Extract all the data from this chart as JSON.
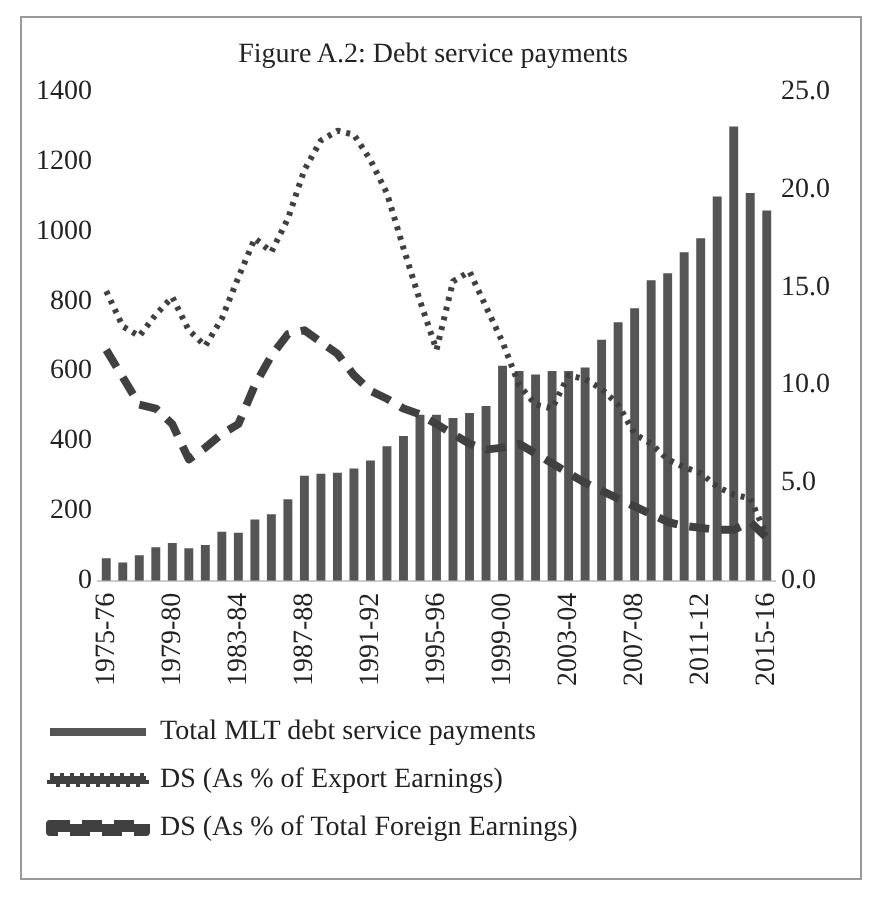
{
  "chart_data": {
    "type": "bar",
    "title": "Figure A.2: Debt service payments",
    "categories": [
      "1975-76",
      null,
      null,
      null,
      "1979-80",
      null,
      null,
      null,
      "1983-84",
      null,
      null,
      null,
      "1987-88",
      null,
      null,
      null,
      "1991-92",
      null,
      null,
      null,
      "1995-96",
      null,
      null,
      null,
      "1999-00",
      null,
      null,
      null,
      "2003-04",
      null,
      null,
      null,
      "2007-08",
      null,
      null,
      null,
      "2011-12",
      null,
      null,
      null,
      "2015-16"
    ],
    "series": [
      {
        "name": "Total MLT debt service payments",
        "color": "#555555",
        "values": [
          64,
          52,
          73,
          96,
          108,
          93,
          102,
          140,
          137,
          175,
          190,
          233,
          300,
          306,
          309,
          321,
          344,
          385,
          414,
          475,
          475,
          466,
          480,
          500,
          615,
          600,
          590,
          600,
          600,
          610,
          690,
          740,
          780,
          860,
          880,
          940,
          980,
          1100,
          1300,
          1110,
          1060
        ]
      },
      {
        "name": "DS (As % of Export Earnings)",
        "type": "line",
        "axis": "y2",
        "line_style": "dotted",
        "color": "#404040",
        "values": [
          14.8,
          13.0,
          12.5,
          13.6,
          14.5,
          12.8,
          12.0,
          13.4,
          15.5,
          17.5,
          16.8,
          18.5,
          21.0,
          22.5,
          23.0,
          22.8,
          21.5,
          19.8,
          17.0,
          14.3,
          11.8,
          15.3,
          15.8,
          14.0,
          12.2,
          10.0,
          9.0,
          8.8,
          10.5,
          10.3,
          9.8,
          9.0,
          7.5,
          7.0,
          6.2,
          5.8,
          5.5,
          4.8,
          4.4,
          4.2,
          2.3
        ]
      },
      {
        "name": "DS (As % of Total Foreign Earnings)",
        "type": "line",
        "axis": "y2",
        "line_style": "dashed",
        "color": "#404040",
        "values": [
          11.8,
          10.4,
          9.0,
          8.8,
          8.0,
          6.2,
          6.8,
          7.5,
          8.0,
          10.0,
          11.5,
          12.6,
          12.8,
          12.2,
          11.6,
          10.5,
          9.7,
          9.3,
          8.8,
          8.5,
          8.0,
          7.5,
          7.0,
          6.7,
          6.8,
          7.0,
          6.5,
          6.0,
          5.5,
          5.0,
          4.6,
          4.2,
          3.8,
          3.4,
          3.0,
          2.8,
          2.7,
          2.6,
          2.6,
          3.0,
          2.2
        ]
      }
    ],
    "ylim": [
      0,
      1400
    ],
    "yticks": [
      0,
      200,
      400,
      600,
      800,
      1000,
      1200,
      1400
    ],
    "y2lim": [
      0,
      25
    ],
    "y2ticks": [
      {
        "value": 0,
        "label": "0.0"
      },
      {
        "value": 5,
        "label": "5.0"
      },
      {
        "value": 10,
        "label": "10.0"
      },
      {
        "value": 15,
        "label": "15.0"
      },
      {
        "value": 20,
        "label": "20.0"
      },
      {
        "value": 25,
        "label": "25.0"
      }
    ],
    "legend": "bottom",
    "grid": false,
    "marker": "none"
  }
}
